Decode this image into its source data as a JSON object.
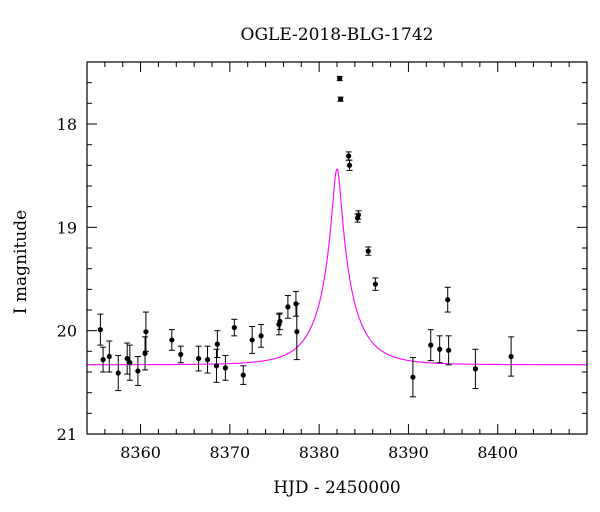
{
  "chart_data": {
    "type": "scatter",
    "title": "OGLE-2018-BLG-1742",
    "xlabel": "HJD - 2450000",
    "ylabel": "I magnitude",
    "xlim": [
      8354,
      8410
    ],
    "ylim": [
      21,
      17.4
    ],
    "y_inverted": true,
    "grid": false,
    "legend": "none",
    "xticks": [
      8360,
      8370,
      8380,
      8390,
      8400
    ],
    "yticks": [
      18,
      19,
      20,
      21
    ],
    "model": {
      "name": "",
      "color": "#ff00ff",
      "t0": 8382.0,
      "tE": 4.0,
      "u0": 0.12,
      "baseline_mag": 20.33,
      "blend_fraction": 0.64
    },
    "series": [
      {
        "name": "",
        "color": "#000000",
        "points": [
          {
            "x": 8355.5,
            "y": 19.99,
            "err": 0.15
          },
          {
            "x": 8355.8,
            "y": 20.28,
            "err": 0.12
          },
          {
            "x": 8356.5,
            "y": 20.25,
            "err": 0.15
          },
          {
            "x": 8357.5,
            "y": 20.41,
            "err": 0.17
          },
          {
            "x": 8358.5,
            "y": 20.27,
            "err": 0.15
          },
          {
            "x": 8358.8,
            "y": 20.31,
            "err": 0.17
          },
          {
            "x": 8359.7,
            "y": 20.39,
            "err": 0.14
          },
          {
            "x": 8360.5,
            "y": 20.22,
            "err": 0.16
          },
          {
            "x": 8360.6,
            "y": 20.01,
            "err": 0.19
          },
          {
            "x": 8363.5,
            "y": 20.09,
            "err": 0.1
          },
          {
            "x": 8364.5,
            "y": 20.23,
            "err": 0.08
          },
          {
            "x": 8366.5,
            "y": 20.27,
            "err": 0.12
          },
          {
            "x": 8367.5,
            "y": 20.28,
            "err": 0.13
          },
          {
            "x": 8368.5,
            "y": 20.34,
            "err": 0.16
          },
          {
            "x": 8368.6,
            "y": 20.13,
            "err": 0.13
          },
          {
            "x": 8369.5,
            "y": 20.36,
            "err": 0.12
          },
          {
            "x": 8370.5,
            "y": 19.97,
            "err": 0.08
          },
          {
            "x": 8371.5,
            "y": 20.43,
            "err": 0.09
          },
          {
            "x": 8372.5,
            "y": 20.09,
            "err": 0.13
          },
          {
            "x": 8373.5,
            "y": 20.05,
            "err": 0.11
          },
          {
            "x": 8375.5,
            "y": 19.94,
            "err": 0.1
          },
          {
            "x": 8375.6,
            "y": 19.91,
            "err": 0.08
          },
          {
            "x": 8376.5,
            "y": 19.77,
            "err": 0.11
          },
          {
            "x": 8377.4,
            "y": 19.74,
            "err": 0.12
          },
          {
            "x": 8377.5,
            "y": 20.01,
            "err": 0.27
          },
          {
            "x": 8382.3,
            "y": 17.56,
            "err": 0.02
          },
          {
            "x": 8382.4,
            "y": 17.76,
            "err": 0.02
          },
          {
            "x": 8383.3,
            "y": 18.31,
            "err": 0.04
          },
          {
            "x": 8383.4,
            "y": 18.4,
            "err": 0.05
          },
          {
            "x": 8384.3,
            "y": 18.91,
            "err": 0.04
          },
          {
            "x": 8384.4,
            "y": 18.88,
            "err": 0.04
          },
          {
            "x": 8385.5,
            "y": 19.23,
            "err": 0.04
          },
          {
            "x": 8386.3,
            "y": 19.55,
            "err": 0.06
          },
          {
            "x": 8390.5,
            "y": 20.45,
            "err": 0.19
          },
          {
            "x": 8392.5,
            "y": 20.14,
            "err": 0.15
          },
          {
            "x": 8393.5,
            "y": 20.18,
            "err": 0.13
          },
          {
            "x": 8394.4,
            "y": 19.7,
            "err": 0.12
          },
          {
            "x": 8394.5,
            "y": 20.19,
            "err": 0.14
          },
          {
            "x": 8397.5,
            "y": 20.37,
            "err": 0.19
          },
          {
            "x": 8401.5,
            "y": 20.25,
            "err": 0.19
          }
        ]
      }
    ]
  }
}
